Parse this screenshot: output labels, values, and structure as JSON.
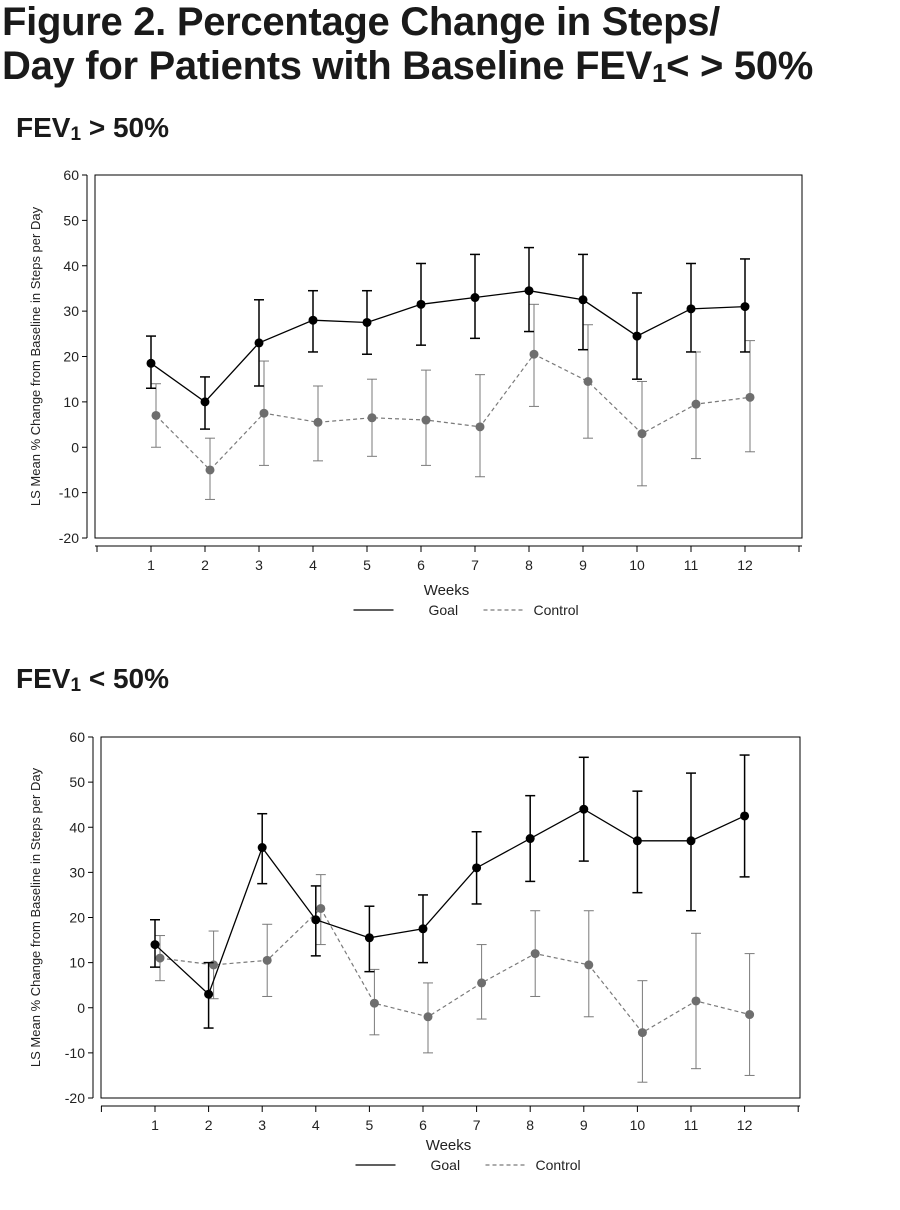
{
  "figure": {
    "title_line1": "Figure 2. Percentage Change in Steps/",
    "title_line2_pre": "Day for Patients with Baseline FEV",
    "title_line2_sub": "1",
    "title_line2_post": "< > 50%"
  },
  "chart_data": [
    {
      "type": "line",
      "heading_pre": "FEV",
      "heading_sub": "1",
      "heading_post": " > 50%",
      "xlabel": "Weeks",
      "ylabel": "LS Mean % Change from Baseline in Steps per Day",
      "ylim": [
        -20,
        60
      ],
      "yticks": [
        -20,
        -10,
        0,
        10,
        20,
        30,
        40,
        50,
        60
      ],
      "x": [
        1,
        2,
        3,
        4,
        5,
        6,
        7,
        8,
        9,
        10,
        11,
        12
      ],
      "legend_position": "bottom-center",
      "series": [
        {
          "name": "Goal",
          "style": "solid",
          "color": "#000000",
          "values": [
            18.5,
            10,
            23,
            28,
            27.5,
            31.5,
            33,
            34.5,
            32.5,
            24.5,
            30.5,
            31
          ],
          "err_low": [
            13,
            4,
            13.5,
            21,
            20.5,
            22.5,
            24,
            25.5,
            21.5,
            15,
            21,
            21
          ],
          "err_high": [
            24.5,
            15.5,
            32.5,
            34.5,
            34.5,
            40.5,
            42.5,
            44,
            42.5,
            34,
            40.5,
            41.5
          ]
        },
        {
          "name": "Control",
          "style": "dashed",
          "color": "#6e6e6e",
          "values": [
            7,
            -5,
            7.5,
            5.5,
            6.5,
            6,
            4.5,
            20.5,
            14.5,
            3,
            9.5,
            11
          ],
          "err_low": [
            0,
            -11.5,
            -4,
            -3,
            -2,
            -4,
            -6.5,
            9,
            2,
            -8.5,
            -2.5,
            -1
          ],
          "err_high": [
            14,
            2,
            19,
            13.5,
            15,
            17,
            16,
            31.5,
            27,
            14.5,
            21,
            23.5
          ]
        }
      ]
    },
    {
      "type": "line",
      "heading_pre": "FEV",
      "heading_sub": "1",
      "heading_post": " < 50%",
      "xlabel": "Weeks",
      "ylabel": "LS Mean % Change from Baseline in Steps per Day",
      "ylim": [
        -20,
        60
      ],
      "yticks": [
        -20,
        -10,
        0,
        10,
        20,
        30,
        40,
        50,
        60
      ],
      "x": [
        1,
        2,
        3,
        4,
        5,
        6,
        7,
        8,
        9,
        10,
        11,
        12
      ],
      "legend_position": "bottom-center",
      "series": [
        {
          "name": "Goal",
          "style": "solid",
          "color": "#000000",
          "values": [
            14,
            3,
            35.5,
            19.5,
            15.5,
            17.5,
            31,
            37.5,
            44,
            37,
            37,
            42.5
          ],
          "err_low": [
            9,
            -4.5,
            27.5,
            11.5,
            8,
            10,
            23,
            28,
            32.5,
            25.5,
            21.5,
            29
          ],
          "err_high": [
            19.5,
            10,
            43,
            27,
            22.5,
            25,
            39,
            47,
            55.5,
            48,
            52,
            56
          ]
        },
        {
          "name": "Control",
          "style": "dashed",
          "color": "#6e6e6e",
          "values": [
            11,
            9.5,
            10.5,
            22,
            1,
            -2,
            5.5,
            12,
            9.5,
            -5.5,
            1.5,
            -1.5
          ],
          "err_low": [
            6,
            2,
            2.5,
            14,
            -6,
            -10,
            -2.5,
            2.5,
            -2,
            -16.5,
            -13.5,
            -15
          ],
          "err_high": [
            16,
            17,
            18.5,
            29.5,
            8.5,
            5.5,
            14,
            21.5,
            21.5,
            6,
            16.5,
            12
          ]
        }
      ]
    }
  ]
}
